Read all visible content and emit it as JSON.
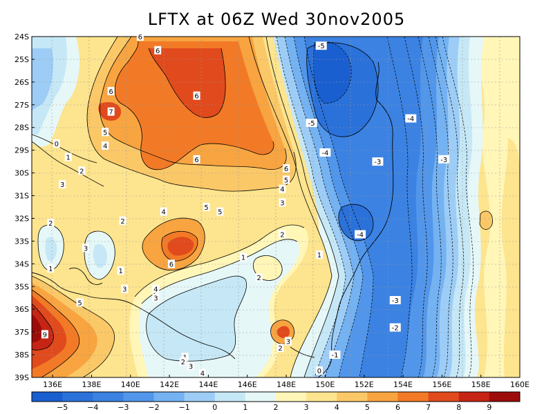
{
  "title": "LFTX at 06Z Wed 30nov2005",
  "lat_labels": [
    "24S",
    "25S",
    "26S",
    "27S",
    "28S",
    "29S",
    "30S",
    "31S",
    "32S",
    "33S",
    "34S",
    "35S",
    "36S",
    "37S",
    "38S",
    "39S"
  ],
  "lon_labels": [
    "136E",
    "138E",
    "140E",
    "142E",
    "144E",
    "146E",
    "148E",
    "150E",
    "152E",
    "154E",
    "156E",
    "158E",
    "160E"
  ],
  "colorbar": {
    "labels": [
      "-5",
      "-4",
      "-3",
      "-2",
      "-1",
      "0",
      "1",
      "2",
      "3",
      "4",
      "5",
      "6",
      "7",
      "8",
      "9"
    ],
    "colors": [
      "#1a5fd0",
      "#2a71da",
      "#3b82e2",
      "#5196ea",
      "#74b2f2",
      "#9dcdf6",
      "#c6e8f6",
      "#e6f7f8",
      "#fff6b8",
      "#fde48e",
      "#fbc868",
      "#f8a440",
      "#f27a26",
      "#e04a1c",
      "#c62414",
      "#9c0c0a"
    ]
  },
  "contour_labels": [
    {
      "t": "6",
      "lon": 140.5,
      "lat": -24.0
    },
    {
      "t": "6",
      "lon": 141.4,
      "lat": -24.6
    },
    {
      "t": "6",
      "lon": 139.0,
      "lat": -26.4
    },
    {
      "t": "7",
      "lon": 139.0,
      "lat": -27.3
    },
    {
      "t": "6",
      "lon": 143.4,
      "lat": -26.6
    },
    {
      "t": "5",
      "lon": 138.7,
      "lat": -28.2
    },
    {
      "t": "4",
      "lon": 138.7,
      "lat": -28.8
    },
    {
      "t": "0",
      "lon": 136.2,
      "lat": -28.7
    },
    {
      "t": "1",
      "lon": 136.8,
      "lat": -29.3
    },
    {
      "t": "2",
      "lon": 137.5,
      "lat": -29.9
    },
    {
      "t": "3",
      "lon": 136.5,
      "lat": -30.5
    },
    {
      "t": "6",
      "lon": 143.4,
      "lat": -29.4
    },
    {
      "t": "6",
      "lon": 148.0,
      "lat": -29.8
    },
    {
      "t": "5",
      "lon": 148.0,
      "lat": -30.3
    },
    {
      "t": "4",
      "lon": 147.8,
      "lat": -30.7
    },
    {
      "t": "3",
      "lon": 147.8,
      "lat": -31.3
    },
    {
      "t": "5",
      "lon": 143.9,
      "lat": -31.5
    },
    {
      "t": "5",
      "lon": 144.6,
      "lat": -31.7
    },
    {
      "t": "4",
      "lon": 141.7,
      "lat": -31.7
    },
    {
      "t": "2",
      "lon": 135.9,
      "lat": -32.2
    },
    {
      "t": "2",
      "lon": 139.6,
      "lat": -32.1
    },
    {
      "t": "2",
      "lon": 147.8,
      "lat": -32.7
    },
    {
      "t": "3",
      "lon": 137.7,
      "lat": -33.3
    },
    {
      "t": "6",
      "lon": 142.1,
      "lat": -34.0
    },
    {
      "t": "1",
      "lon": 145.8,
      "lat": -33.7
    },
    {
      "t": "1",
      "lon": 149.7,
      "lat": -33.6
    },
    {
      "t": "1",
      "lon": 135.9,
      "lat": -34.2
    },
    {
      "t": "1",
      "lon": 139.5,
      "lat": -34.3
    },
    {
      "t": "2",
      "lon": 146.6,
      "lat": -34.6
    },
    {
      "t": "3",
      "lon": 139.7,
      "lat": -35.1
    },
    {
      "t": "4",
      "lon": 141.3,
      "lat": -35.1
    },
    {
      "t": "3",
      "lon": 141.3,
      "lat": -35.5
    },
    {
      "t": "5",
      "lon": 137.4,
      "lat": -35.7
    },
    {
      "t": "9",
      "lon": 135.6,
      "lat": -37.1
    },
    {
      "t": "3",
      "lon": 148.1,
      "lat": -37.4
    },
    {
      "t": "2",
      "lon": 147.7,
      "lat": -37.7
    },
    {
      "t": "1",
      "lon": 142.8,
      "lat": -38.1
    },
    {
      "t": "2",
      "lon": 142.7,
      "lat": -38.3
    },
    {
      "t": "3",
      "lon": 143.1,
      "lat": -38.5
    },
    {
      "t": "4",
      "lon": 143.7,
      "lat": -38.8
    },
    {
      "t": "0",
      "lon": 149.7,
      "lat": -38.7
    },
    {
      "t": "-1",
      "lon": 150.5,
      "lat": -38.0
    },
    {
      "t": "-2",
      "lon": 153.6,
      "lat": -36.8
    },
    {
      "t": "-3",
      "lon": 153.6,
      "lat": -35.6
    },
    {
      "t": "-4",
      "lon": 151.8,
      "lat": -32.7
    },
    {
      "t": "-3",
      "lon": 152.7,
      "lat": -29.5
    },
    {
      "t": "-3",
      "lon": 156.1,
      "lat": -29.4
    },
    {
      "t": "-4",
      "lon": 150.0,
      "lat": -29.1
    },
    {
      "t": "-5",
      "lon": 149.3,
      "lat": -27.8
    },
    {
      "t": "-4",
      "lon": 154.4,
      "lat": -27.6
    },
    {
      "t": "-5",
      "lon": 149.8,
      "lat": -24.4
    }
  ]
}
